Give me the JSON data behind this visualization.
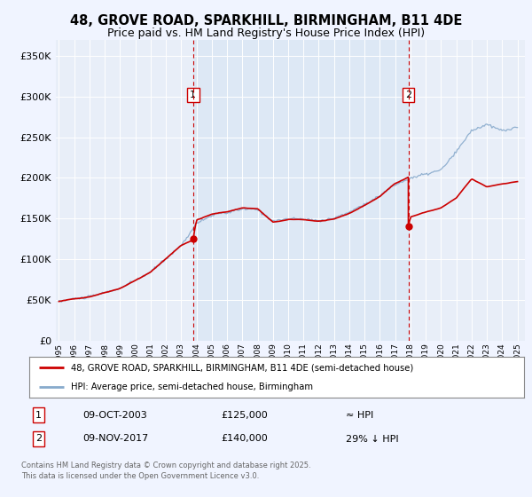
{
  "title_line1": "48, GROVE ROAD, SPARKHILL, BIRMINGHAM, B11 4DE",
  "title_line2": "Price paid vs. HM Land Registry's House Price Index (HPI)",
  "legend_entry1": "48, GROVE ROAD, SPARKHILL, BIRMINGHAM, B11 4DE (semi-detached house)",
  "legend_entry2": "HPI: Average price, semi-detached house, Birmingham",
  "annotation1_label": "1",
  "annotation1_date": "09-OCT-2003",
  "annotation1_price": "£125,000",
  "annotation1_hpi": "≈ HPI",
  "annotation2_label": "2",
  "annotation2_date": "09-NOV-2017",
  "annotation2_price": "£140,000",
  "annotation2_hpi": "29% ↓ HPI",
  "footnote": "Contains HM Land Registry data © Crown copyright and database right 2025.\nThis data is licensed under the Open Government Licence v3.0.",
  "vline1_x": 2003.78,
  "vline2_x": 2017.86,
  "sale1_x": 2003.78,
  "sale1_y": 125000,
  "sale2_x": 2017.86,
  "sale2_y": 140000,
  "sale2_pre_y": 200000,
  "ylim": [
    0,
    370000
  ],
  "xlim_start": 1994.8,
  "xlim_end": 2025.5,
  "red_line_color": "#cc0000",
  "blue_line_color": "#88aacc",
  "vline_color": "#cc0000",
  "grid_color": "#cccccc",
  "shade_color": "#dde8f5",
  "fig_bg": "#f0f4ff",
  "plot_bg": "#e8eef8",
  "title_fontsize": 10.5,
  "subtitle_fontsize": 9
}
